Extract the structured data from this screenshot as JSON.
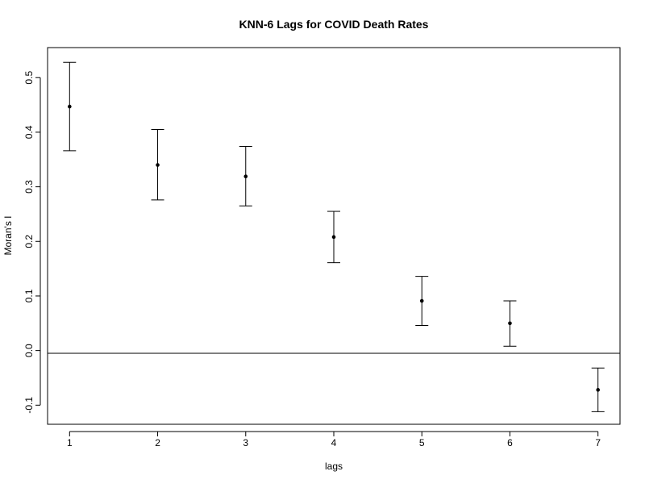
{
  "chart_data": {
    "type": "scatter",
    "title": "KNN-6 Lags for COVID Death Rates",
    "xlabel": "lags",
    "ylabel": "Moran's I",
    "x": [
      1,
      2,
      3,
      4,
      5,
      6,
      7
    ],
    "values": [
      0.447,
      0.34,
      0.319,
      0.208,
      0.091,
      0.05,
      -0.072
    ],
    "error_low": [
      0.366,
      0.276,
      0.265,
      0.161,
      0.046,
      0.008,
      -0.112
    ],
    "error_high": [
      0.528,
      0.405,
      0.374,
      0.255,
      0.136,
      0.091,
      -0.032
    ],
    "reference_line_y": -0.005,
    "xlim": [
      0.75,
      7.25
    ],
    "ylim": [
      -0.135,
      0.555
    ],
    "x_ticks": [
      "1",
      "2",
      "3",
      "4",
      "5",
      "6",
      "7"
    ],
    "y_ticks": [
      "-0.1",
      "0.0",
      "0.1",
      "0.2",
      "0.3",
      "0.4",
      "0.5"
    ],
    "y_tick_values": [
      -0.1,
      0.0,
      0.1,
      0.2,
      0.3,
      0.4,
      0.5
    ],
    "grid": false,
    "colors": {
      "points": "#000000",
      "lines": "#000000",
      "background": "#ffffff"
    }
  }
}
